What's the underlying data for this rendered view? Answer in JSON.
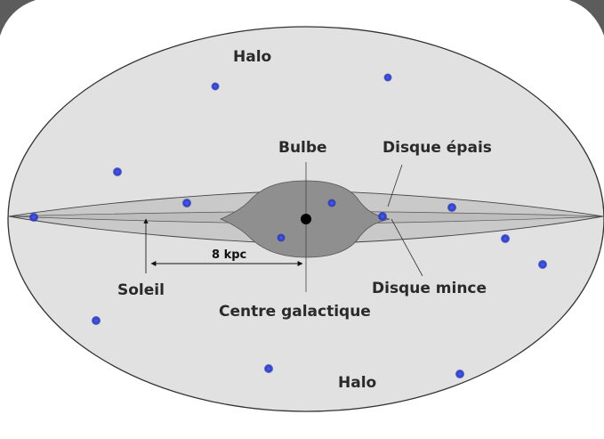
{
  "labels": {
    "halo_top": "Halo",
    "halo_bottom": "Halo",
    "bulge": "Bulbe",
    "thick_disk": "Disque épais",
    "thin_disk": "Disque mince",
    "sun": "Soleil",
    "galactic_center": "Centre galactique",
    "distance": "8 kpc"
  },
  "colors": {
    "halo_fill": "#e1e1e1",
    "disk_fill": "#c6c6c6",
    "bulge_fill": "#8f8f8f",
    "cluster_dot": "#2c3fd6",
    "outline": "#333333",
    "center": "#000000"
  },
  "icons": {
    "globular_cluster": "blue-dot-icon",
    "galactic_center": "black-dot-icon",
    "sun_marker": "arrow-icon"
  }
}
